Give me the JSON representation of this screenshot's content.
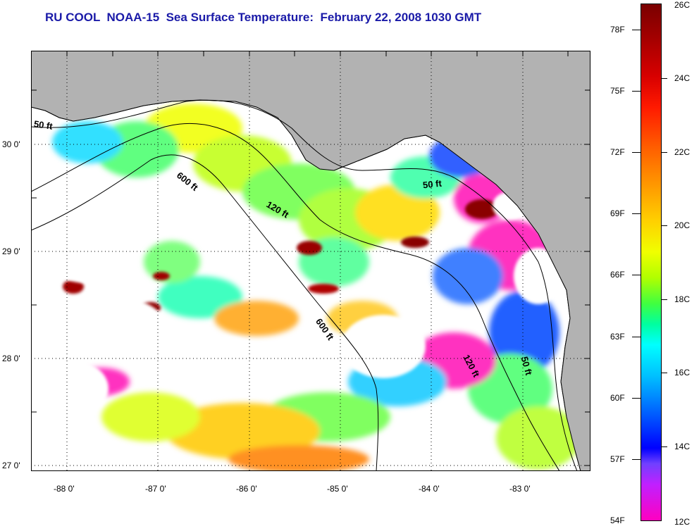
{
  "title": "RU COOL  NOAA-15  Sea Surface Temperature:  February 22, 2008 1030 GMT",
  "map": {
    "land_color": "#b2b2b2",
    "cloud_color": "#ffffff",
    "latitude_labels": [
      "30 0'",
      "29 0'",
      "28 0'",
      "27 0'"
    ],
    "longitude_labels": [
      "-88 0'",
      "-87 0'",
      "-86 0'",
      "-85 0'",
      "-84 0'",
      "-83 0'"
    ],
    "isobath_labels": [
      {
        "text": "50 ft",
        "id": "isobath-50ft-west"
      },
      {
        "text": "600 ft",
        "id": "isobath-600ft-north"
      },
      {
        "text": "120 ft",
        "id": "isobath-120ft-north"
      },
      {
        "text": "50 ft",
        "id": "isobath-50ft-bigbend"
      },
      {
        "text": "600 ft",
        "id": "isobath-600ft-south"
      },
      {
        "text": "120 ft",
        "id": "isobath-120ft-south"
      },
      {
        "text": "50 ft",
        "id": "isobath-50ft-south"
      }
    ]
  },
  "colorbar": {
    "fahrenheit_labels": [
      "78F",
      "75F",
      "72F",
      "69F",
      "66F",
      "63F",
      "60F",
      "57F",
      "54F"
    ],
    "celsius_labels": [
      "26C",
      "24C",
      "22C",
      "20C",
      "18C",
      "16C",
      "14C",
      "12C"
    ],
    "range_celsius": [
      12,
      26
    ],
    "range_fahrenheit": [
      54,
      78.8
    ]
  }
}
